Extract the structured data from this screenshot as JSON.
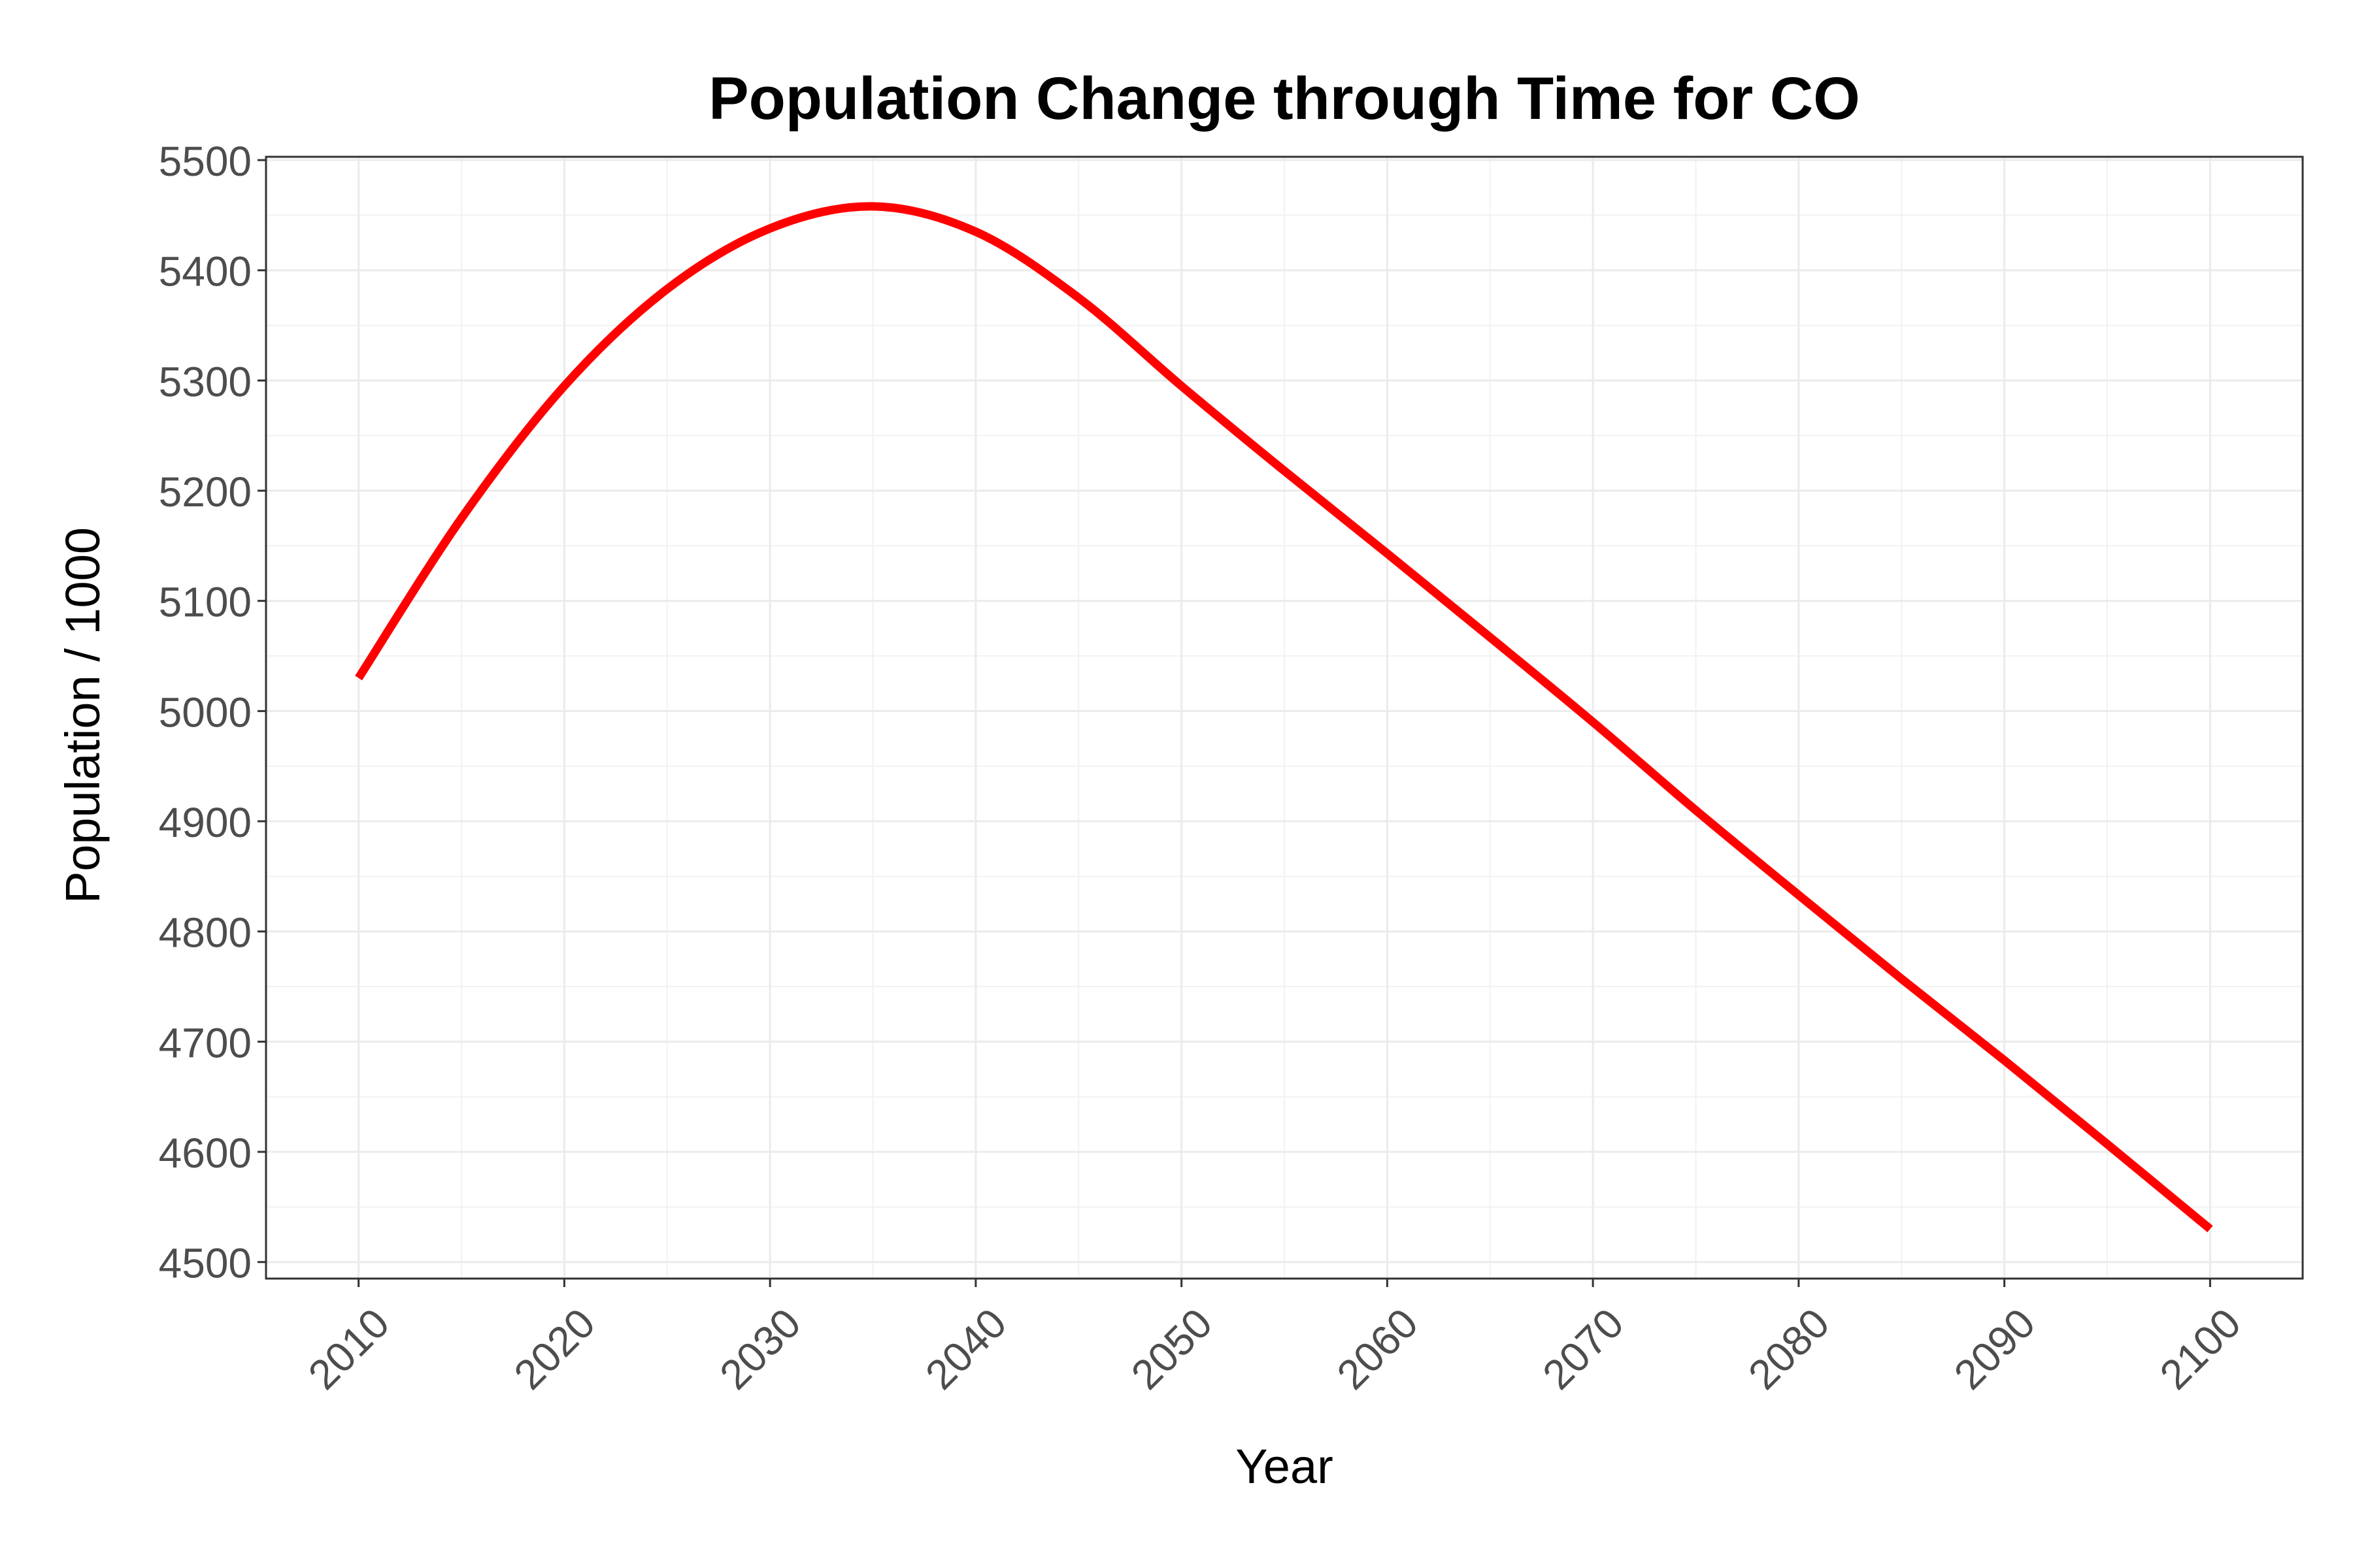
{
  "chart_data": {
    "type": "line",
    "title": "Population Change through Time for CO",
    "xlabel": "Year",
    "ylabel": "Population / 1000",
    "xlim": [
      2005.5,
      2104.5
    ],
    "ylim": [
      4485,
      5503
    ],
    "x_ticks": [
      2010,
      2020,
      2030,
      2040,
      2050,
      2060,
      2070,
      2080,
      2090,
      2100
    ],
    "y_ticks": [
      4500,
      4600,
      4700,
      4800,
      4900,
      5000,
      5100,
      5200,
      5300,
      5400,
      5500
    ],
    "grid": true,
    "legend": "none",
    "series": [
      {
        "color": "#ff0000",
        "x": [
          2010,
          2015,
          2020,
          2025,
          2030,
          2035,
          2040,
          2045,
          2050,
          2055,
          2060,
          2065,
          2070,
          2075,
          2080,
          2085,
          2090,
          2095,
          2100
        ],
        "values": [
          5030,
          5175,
          5295,
          5383,
          5438,
          5458,
          5435,
          5375,
          5295,
          5218,
          5143,
          5067,
          4990,
          4910,
          4833,
          4757,
          4683,
          4607,
          4530
        ]
      }
    ]
  }
}
